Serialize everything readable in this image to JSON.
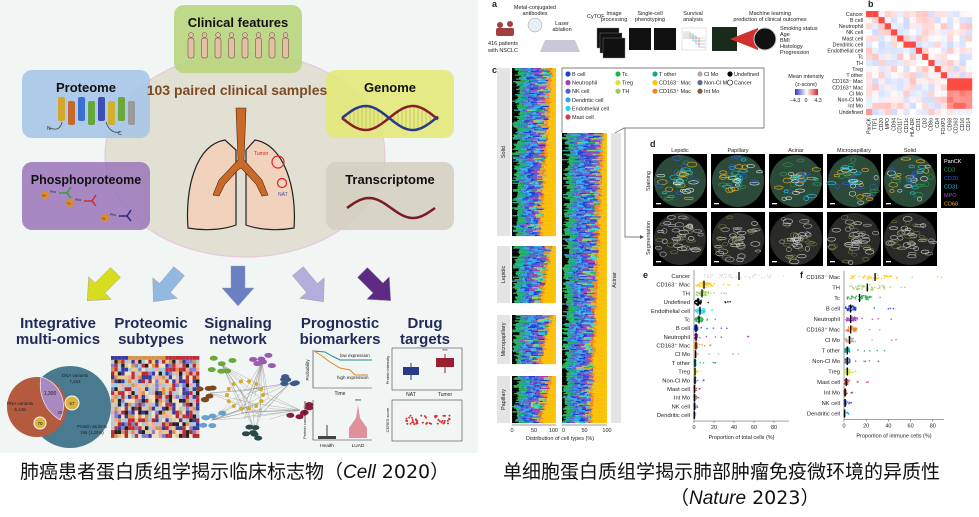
{
  "left": {
    "center_title": "103 paired clinical samples",
    "boxes": [
      {
        "label": "Clinical features",
        "color": "#b7d57c"
      },
      {
        "label": "Proteome",
        "color": "#a6c5e8"
      },
      {
        "label": "Genome",
        "color": "#e2e878"
      },
      {
        "label": "Phosphoproteome",
        "color": "#9d79bb"
      },
      {
        "label": "Transcriptome",
        "color": "#d4cfc0"
      }
    ],
    "lung_labels": {
      "tumor": "Tumor",
      "nat": "NAT"
    },
    "protein_termini": {
      "n": "N",
      "c": "C"
    },
    "phospho_labels": [
      "Ser",
      "Thr",
      "Tyr",
      "Pho"
    ],
    "outcomes": [
      {
        "line1": "Integrative",
        "line2": "multi-omics",
        "arrow_color": "#d6dc1e"
      },
      {
        "line1": "Proteomic",
        "line2": "subtypes",
        "arrow_color": "#93b9e3"
      },
      {
        "line1": "Signaling",
        "line2": "network",
        "arrow_color": "#6b80c2"
      },
      {
        "line1": "Prognostic",
        "line2": "biomarkers",
        "arrow_color": "#b2aedb"
      },
      {
        "line1": "Drug",
        "line2": "targets",
        "arrow_color": "#5e2a84"
      }
    ],
    "venn": {
      "dna": {
        "label": "DNA variants",
        "value": "7,234"
      },
      "rna": {
        "label": "RNA variants",
        "value": "5,146"
      },
      "overlap": "1,300",
      "protein_dna": "67",
      "protein_dna_rna": "29",
      "protein_rna": "70",
      "protein": {
        "label": "Protein variants",
        "value": "166 (1.20%)"
      }
    },
    "survival": {
      "ylabel": "Probability",
      "xlabel": "Time",
      "low": "low expression",
      "high": "high expression"
    },
    "box_nat_tumor": {
      "ylabel": "Protein intensity",
      "cats": [
        "NAT",
        "Tumor"
      ],
      "sig": "***"
    },
    "box_health_luad": {
      "ylabel": "Protein concentration",
      "cats": [
        "Health",
        "LUAD"
      ],
      "sig": "***"
    },
    "ceres": {
      "ylabel": "CERES score"
    },
    "caption": {
      "text": "肺癌患者蛋白质组学揭示临床标志物（",
      "journal": "Cell",
      "year": " 2020）"
    }
  },
  "right": {
    "panel_letters": [
      "a",
      "b",
      "c",
      "d",
      "e",
      "f"
    ],
    "a": {
      "patients": "416 patients with NSCLC",
      "antibodies": "Metal-conjugated antibodies",
      "laser": "Laser ablation",
      "cytof": "CyTOF",
      "steps": [
        "Image processing",
        "Single-cell phenotyping",
        "Survival analysis",
        "Machine learning prediction of clinical outcomes"
      ],
      "outcomes": [
        "Smoking status",
        "Age",
        "BMI",
        "Histology",
        "Progression"
      ]
    },
    "b": {
      "rows": [
        "Cancer",
        "B cell",
        "Neutrophil",
        "NK cell",
        "Mast cell",
        "Dendritic cell",
        "Endothelial cell",
        "Tc",
        "TH",
        "Treg",
        "T other",
        "CD163⁻ Mac",
        "CD163⁺ Mac",
        "Cl Mo",
        "Non-Cl Mo",
        "Int Mo",
        "Undefined"
      ],
      "cols": [
        "PanCK",
        "TTF1",
        "CD20",
        "MPO",
        "CD94",
        "CD117",
        "CD11c",
        "HLA-DR",
        "CD31",
        "CD3",
        "CD8α",
        "CD4",
        "FOXP3",
        "CD68",
        "CD163",
        "CD16",
        "CD14"
      ]
    },
    "c": {
      "legend": [
        {
          "label": "B cell",
          "color": "#1f3fd6"
        },
        {
          "label": "Neutrophil",
          "color": "#a23fb8"
        },
        {
          "label": "NK cell",
          "color": "#4e62c9"
        },
        {
          "label": "Dendritic cell",
          "color": "#2ea9ea"
        },
        {
          "label": "Endothelial cell",
          "color": "#22d4ee"
        },
        {
          "label": "Mast cell",
          "color": "#d43f4f"
        },
        {
          "label": "Tc",
          "color": "#1fb24a"
        },
        {
          "label": "Treg",
          "color": "#d2e33a"
        },
        {
          "label": "TH",
          "color": "#9ccc5c"
        },
        {
          "label": "T other",
          "color": "#16a398"
        },
        {
          "label": "CD163⁻ Mac",
          "color": "#fbc50a"
        },
        {
          "label": "CD163⁺ Mac",
          "color": "#f5861f"
        },
        {
          "label": "Cl Mo",
          "color": "#b9a9a0"
        },
        {
          "label": "Non-Cl Mo",
          "color": "#5c6f96"
        },
        {
          "label": "Int Mo",
          "color": "#8a5a45"
        },
        {
          "label": "Undefined",
          "color": "#000000"
        },
        {
          "label": "Cancer",
          "color": "#ffffff"
        }
      ],
      "colorbar": {
        "title1": "Mean intensity",
        "title2": "(z-score)",
        "min": "−4.3",
        "mid": "0",
        "max": "4.3"
      },
      "groups": [
        "Solid",
        "Lepidic",
        "Micropapillary",
        "Papillary",
        "Acinar"
      ],
      "ticks": [
        "0",
        "50",
        "100"
      ],
      "xlabel": "Distribution of cell types (%)"
    },
    "d": {
      "columns": [
        "Lepidic",
        "Papillary",
        "Acinar",
        "Micropapillary",
        "Solid"
      ],
      "rows": [
        "Staining",
        "Segmentation"
      ],
      "channels": [
        {
          "label": "PanCK",
          "color": "#ffffff"
        },
        {
          "label": "CD3",
          "color": "#22b24c"
        },
        {
          "label": "CD20",
          "color": "#2f5fd0"
        },
        {
          "label": "CD31",
          "color": "#28c6e8"
        },
        {
          "label": "MPO",
          "color": "#b04ac8"
        },
        {
          "label": "CD68",
          "color": "#f0b020"
        }
      ]
    },
    "chart_data": [
      {
        "type": "scatter",
        "panel": "e",
        "xlabel": "Proportion of total cells (%)",
        "xlim": [
          0,
          95
        ],
        "xticks": [
          "0",
          "20",
          "40",
          "60",
          "80"
        ],
        "categories": [
          "Cancer",
          "CD163⁻ Mac",
          "TH",
          "Undefined",
          "Endothelial cell",
          "Tc",
          "B cell",
          "Neutrophil",
          "CD163⁺ Mac",
          "Cl Mo",
          "T other",
          "Treg",
          "Non-Cl Mo",
          "Mast cell",
          "Int Mo",
          "NK cell",
          "Dendritic cell"
        ],
        "medians": [
          45,
          10,
          8,
          4,
          6,
          5,
          2,
          2,
          2,
          1.5,
          1,
          1,
          1,
          0.5,
          0.5,
          0.5,
          0.3
        ],
        "max": [
          90,
          45,
          35,
          45,
          28,
          28,
          35,
          62,
          17,
          47,
          22,
          8,
          14,
          7,
          5,
          4,
          2
        ],
        "colors": [
          "#d9d9d9",
          "#fbc50a",
          "#9ccc5c",
          "#000000",
          "#22d4ee",
          "#1fb24a",
          "#1f3fd6",
          "#a23fb8",
          "#f5861f",
          "#b9a9a0",
          "#16a398",
          "#d2e33a",
          "#5c6f96",
          "#d43f4f",
          "#8a5a45",
          "#4e62c9",
          "#2ea9ea"
        ]
      },
      {
        "type": "scatter",
        "panel": "f",
        "xlabel": "Proportion of immune cells (%)",
        "xlim": [
          0,
          90
        ],
        "xticks": [
          "0",
          "20",
          "40",
          "60",
          "80"
        ],
        "categories": [
          "CD163⁻ Mac",
          "TH",
          "Tc",
          "B cell",
          "Neutrophil",
          "CD163⁺ Mac",
          "Cl Mo",
          "T other",
          "Non-Cl Mo",
          "Treg",
          "Mast cell",
          "Int Mo",
          "NK cell",
          "Dendritic cell"
        ],
        "medians": [
          28,
          21,
          14,
          6,
          6,
          6,
          5,
          3,
          3,
          3,
          2,
          1,
          1,
          0.5
        ],
        "max": [
          88,
          55,
          42,
          52,
          76,
          33,
          55,
          42,
          32,
          12,
          22,
          9,
          16,
          5
        ],
        "colors": [
          "#fbc50a",
          "#9ccc5c",
          "#1fb24a",
          "#1f3fd6",
          "#a23fb8",
          "#f5861f",
          "#b9a9a0",
          "#16a398",
          "#5c6f96",
          "#d2e33a",
          "#d43f4f",
          "#8a5a45",
          "#4e62c9",
          "#2ea9ea"
        ]
      }
    ],
    "caption": {
      "line1": "单细胞蛋白质组学揭示肺部肿瘤免疫微环境的异质性",
      "open": "（",
      "journal": "Nature",
      "close": " 2023）"
    }
  }
}
